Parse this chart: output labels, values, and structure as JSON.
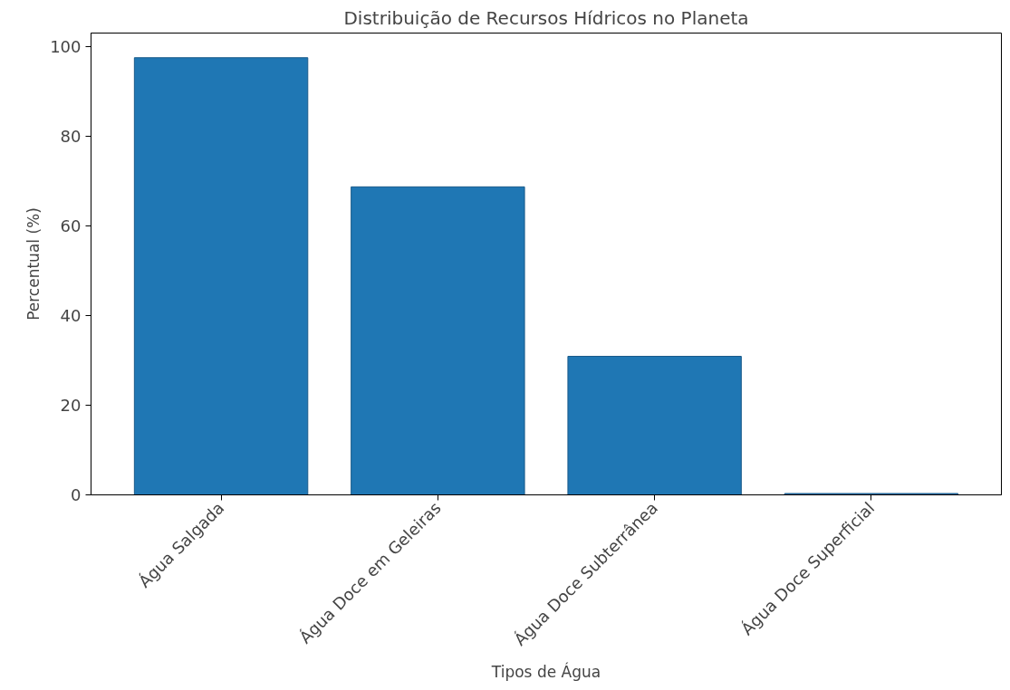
{
  "chart_data": {
    "type": "bar",
    "title": "Distribuição de Recursos Hídricos no Planeta",
    "xlabel": "Tipos de Água",
    "ylabel": "Percentual (%)",
    "categories": [
      "Água Salgada",
      "Água Doce em Geleiras",
      "Água Doce Subterrânea",
      "Água Doce Superficial"
    ],
    "values": [
      97.5,
      68.7,
      30.9,
      0.3
    ],
    "color": "#1f77b4",
    "ylim": [
      0,
      103
    ],
    "yticks": [
      0,
      20,
      40,
      60,
      80,
      100
    ],
    "grid": false
  }
}
